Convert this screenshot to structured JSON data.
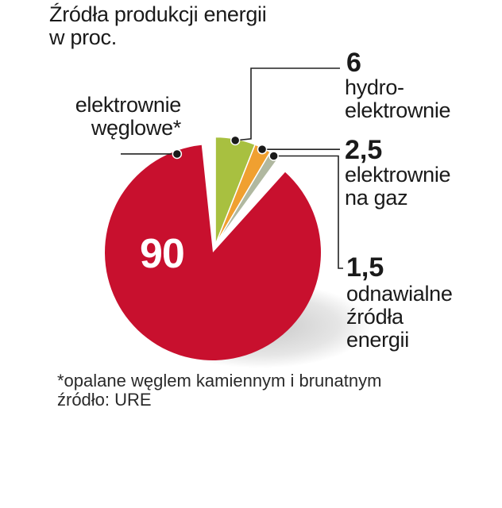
{
  "chart_data": {
    "type": "pie",
    "title_lines": [
      "Źródła produkcji energii",
      "w proc."
    ],
    "slices": [
      {
        "label_lines": [
          "elektrownie",
          "węglowe*"
        ],
        "value": 90,
        "value_text": "90",
        "color": "#c8102e"
      },
      {
        "label_lines": [
          "hydro-",
          "elektrownie"
        ],
        "value": 6,
        "value_text": "6",
        "color": "#a8c040"
      },
      {
        "label_lines": [
          "elektrownie",
          "na gaz"
        ],
        "value": 2.5,
        "value_text": "2,5",
        "color": "#f0a030"
      },
      {
        "label_lines": [
          "odnawialne",
          "źródła",
          "energii"
        ],
        "value": 1.5,
        "value_text": "1,5",
        "color": "#b0b8a0"
      }
    ],
    "footnote": "*opalane węglem kamiennym i brunatnym",
    "source": "źródło: URE"
  }
}
